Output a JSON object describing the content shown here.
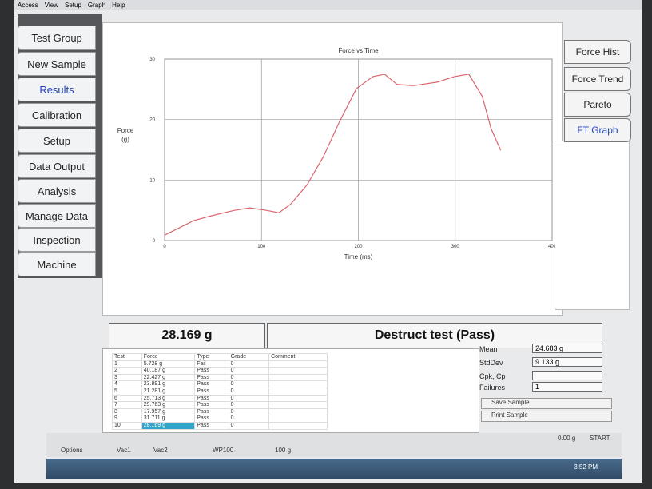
{
  "menu": [
    "Access",
    "View",
    "Setup",
    "Graph",
    "Help"
  ],
  "left_tabs": [
    "Test Group",
    "New Sample",
    "Results",
    "Calibration",
    "Setup",
    "Data Output",
    "Analysis",
    "Manage Data",
    "Inspection",
    "Machine"
  ],
  "right_tabs": [
    "Force Hist",
    "Force Trend",
    "Pareto",
    "FT Graph"
  ],
  "chart_data": {
    "type": "line",
    "title": "Force vs Time",
    "xlabel": "Time (ms)",
    "ylabel": "Force",
    "yunit": "(g)",
    "x": [
      0,
      30,
      46,
      72,
      88,
      105,
      118,
      130,
      147,
      164,
      181,
      198,
      215,
      227,
      240,
      257,
      282,
      299,
      314,
      328,
      337,
      347
    ],
    "series": [
      {
        "name": "Force",
        "color": "#d9666e",
        "values": [
          0.9,
          3.3,
          4,
          5,
          5.4,
          5,
          4.6,
          6,
          9.2,
          13.9,
          19.8,
          25.1,
          27.1,
          27.5,
          25.8,
          25.6,
          26.2,
          27.1,
          27.5,
          23.8,
          18.5,
          14.9
        ]
      }
    ],
    "xlim": [
      0,
      400
    ],
    "xticks": [
      0,
      100,
      200,
      300,
      400
    ],
    "ylim": [
      0,
      30
    ],
    "yticks": [
      0,
      10,
      20,
      30
    ],
    "grid": true
  },
  "result": {
    "force": "28.169 g",
    "status": "Destruct test (Pass)"
  },
  "table": {
    "columns": [
      "Test",
      "Force",
      "Type",
      "Grade",
      "Comment"
    ],
    "rows": [
      [
        "1",
        "5.728 g",
        "Fail",
        "0"
      ],
      [
        "2",
        "40.187 g",
        "Pass",
        "0"
      ],
      [
        "3",
        "22.427 g",
        "Pass",
        "0"
      ],
      [
        "4",
        "23.891 g",
        "Pass",
        "0"
      ],
      [
        "5",
        "21.281 g",
        "Pass",
        "0"
      ],
      [
        "6",
        "25.713 g",
        "Pass",
        "0"
      ],
      [
        "7",
        "29.763 g",
        "Pass",
        "0"
      ],
      [
        "8",
        "17.957 g",
        "Pass",
        "0"
      ],
      [
        "9",
        "31.711 g",
        "Pass",
        "0"
      ],
      [
        "10",
        "28.169 g",
        "Pass",
        "0"
      ]
    ]
  },
  "stats": [
    {
      "label": "Mean",
      "value": "24.683 g"
    },
    {
      "label": "StdDev",
      "value": "9.133 g"
    },
    {
      "label": "Cpk, Cp"
    },
    {
      "label": "Failures",
      "value": "1"
    }
  ],
  "buttons": [
    "Save Sample",
    "Print Sample"
  ],
  "status_bar": {
    "options": "Options",
    "vac1": "Vac1",
    "vac2": "Vac2",
    "wp": "WP100",
    "weight": "100 g",
    "reading": "0.00 g",
    "start": "START"
  },
  "taskbar": {
    "time": "3:52 PM"
  }
}
